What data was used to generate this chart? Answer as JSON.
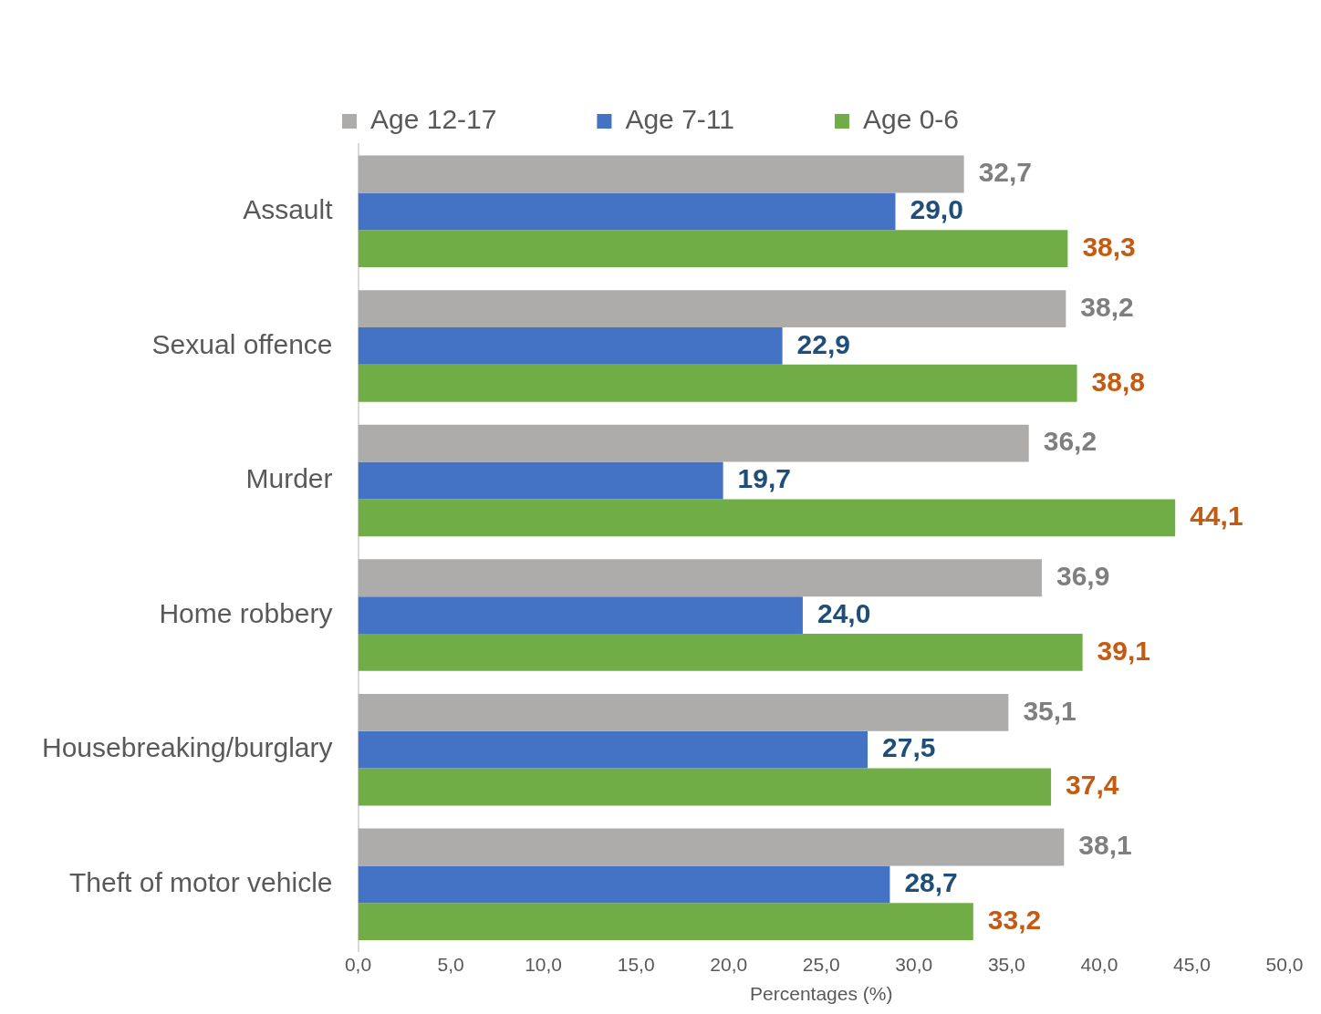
{
  "chart_data": {
    "type": "bar",
    "orientation": "horizontal",
    "xlabel": "Percentages (%)",
    "categories": [
      "Assault",
      "Sexual offence",
      "Murder",
      "Home robbery",
      "Housebreaking/burglary",
      "Theft of motor vehicle"
    ],
    "series": [
      {
        "name": "Age 12-17",
        "color": "#aeabab",
        "values": [
          32.7,
          38.2,
          36.2,
          36.9,
          35.1,
          38.1
        ],
        "value_labels": [
          "32,7",
          "38,2",
          "36,2",
          "36,9",
          "35,1",
          "38,1"
        ]
      },
      {
        "name": "Age 7-11",
        "color": "#4472c4",
        "values": [
          29.0,
          22.9,
          19.7,
          24.0,
          27.5,
          28.7
        ],
        "value_labels": [
          "29,0",
          "22,9",
          "19,7",
          "24,0",
          "27,5",
          "28,7"
        ]
      },
      {
        "name": "Age 0-6",
        "color": "#70ad47",
        "values": [
          38.3,
          38.8,
          44.1,
          39.1,
          37.4,
          33.2
        ],
        "value_labels": [
          "38,3",
          "38,8",
          "44,1",
          "39,1",
          "37,4",
          "33,2"
        ]
      }
    ],
    "xlim": [
      0,
      50
    ],
    "xticks": [
      {
        "value": 0,
        "label": "0,0"
      },
      {
        "value": 5,
        "label": "5,0"
      },
      {
        "value": 10,
        "label": "10,0"
      },
      {
        "value": 15,
        "label": "15,0"
      },
      {
        "value": 20,
        "label": "20,0"
      },
      {
        "value": 25,
        "label": "25,0"
      },
      {
        "value": 30,
        "label": "30,0"
      },
      {
        "value": 35,
        "label": "35,0"
      },
      {
        "value": 40,
        "label": "40,0"
      },
      {
        "value": 45,
        "label": "45,0"
      },
      {
        "value": 50,
        "label": "50,0"
      }
    ],
    "grid": false,
    "legend": "top"
  }
}
